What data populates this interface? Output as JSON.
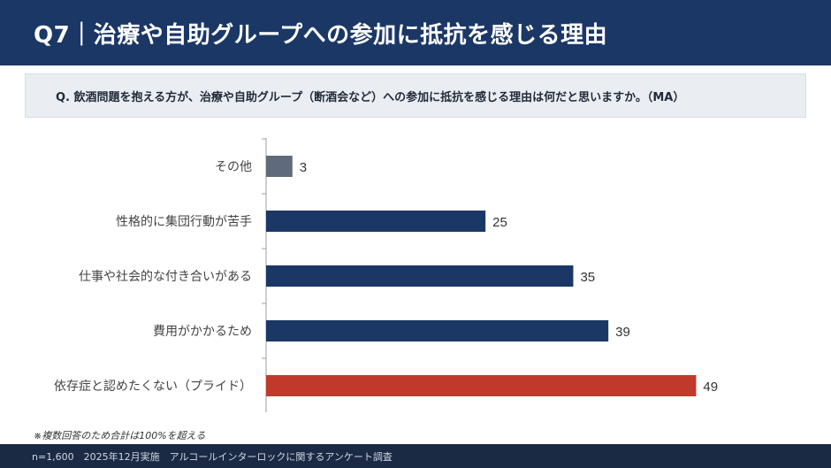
{
  "header": {
    "title": "Q7｜治療や自助グループへの参加に抵抗を感じる理由"
  },
  "question": {
    "text": "Q. 飲酒問題を抱える方が、治療や自助グループ（断酒会など）への参加に抵抗を感じる理由は何だと思いますか。（MA）"
  },
  "chart_data": {
    "type": "bar",
    "orientation": "horizontal",
    "categories": [
      "その他",
      "性格的に集団行動が苦手",
      "仕事や社会的な付き合いがある",
      "費用がかかるため",
      "依存症と認めたくない（プライド）"
    ],
    "values": [
      3,
      25,
      35,
      39,
      49
    ],
    "colors": [
      "#5f6b7a",
      "#1b3766",
      "#1b3766",
      "#1b3766",
      "#c0392b"
    ],
    "xlim": [
      0,
      55
    ],
    "grid": false
  },
  "note": "※複数回答のため合計は100%を超える",
  "footer": {
    "text": "n=1,600　2025年12月実施　アルコールインターロックに関するアンケート調査"
  }
}
